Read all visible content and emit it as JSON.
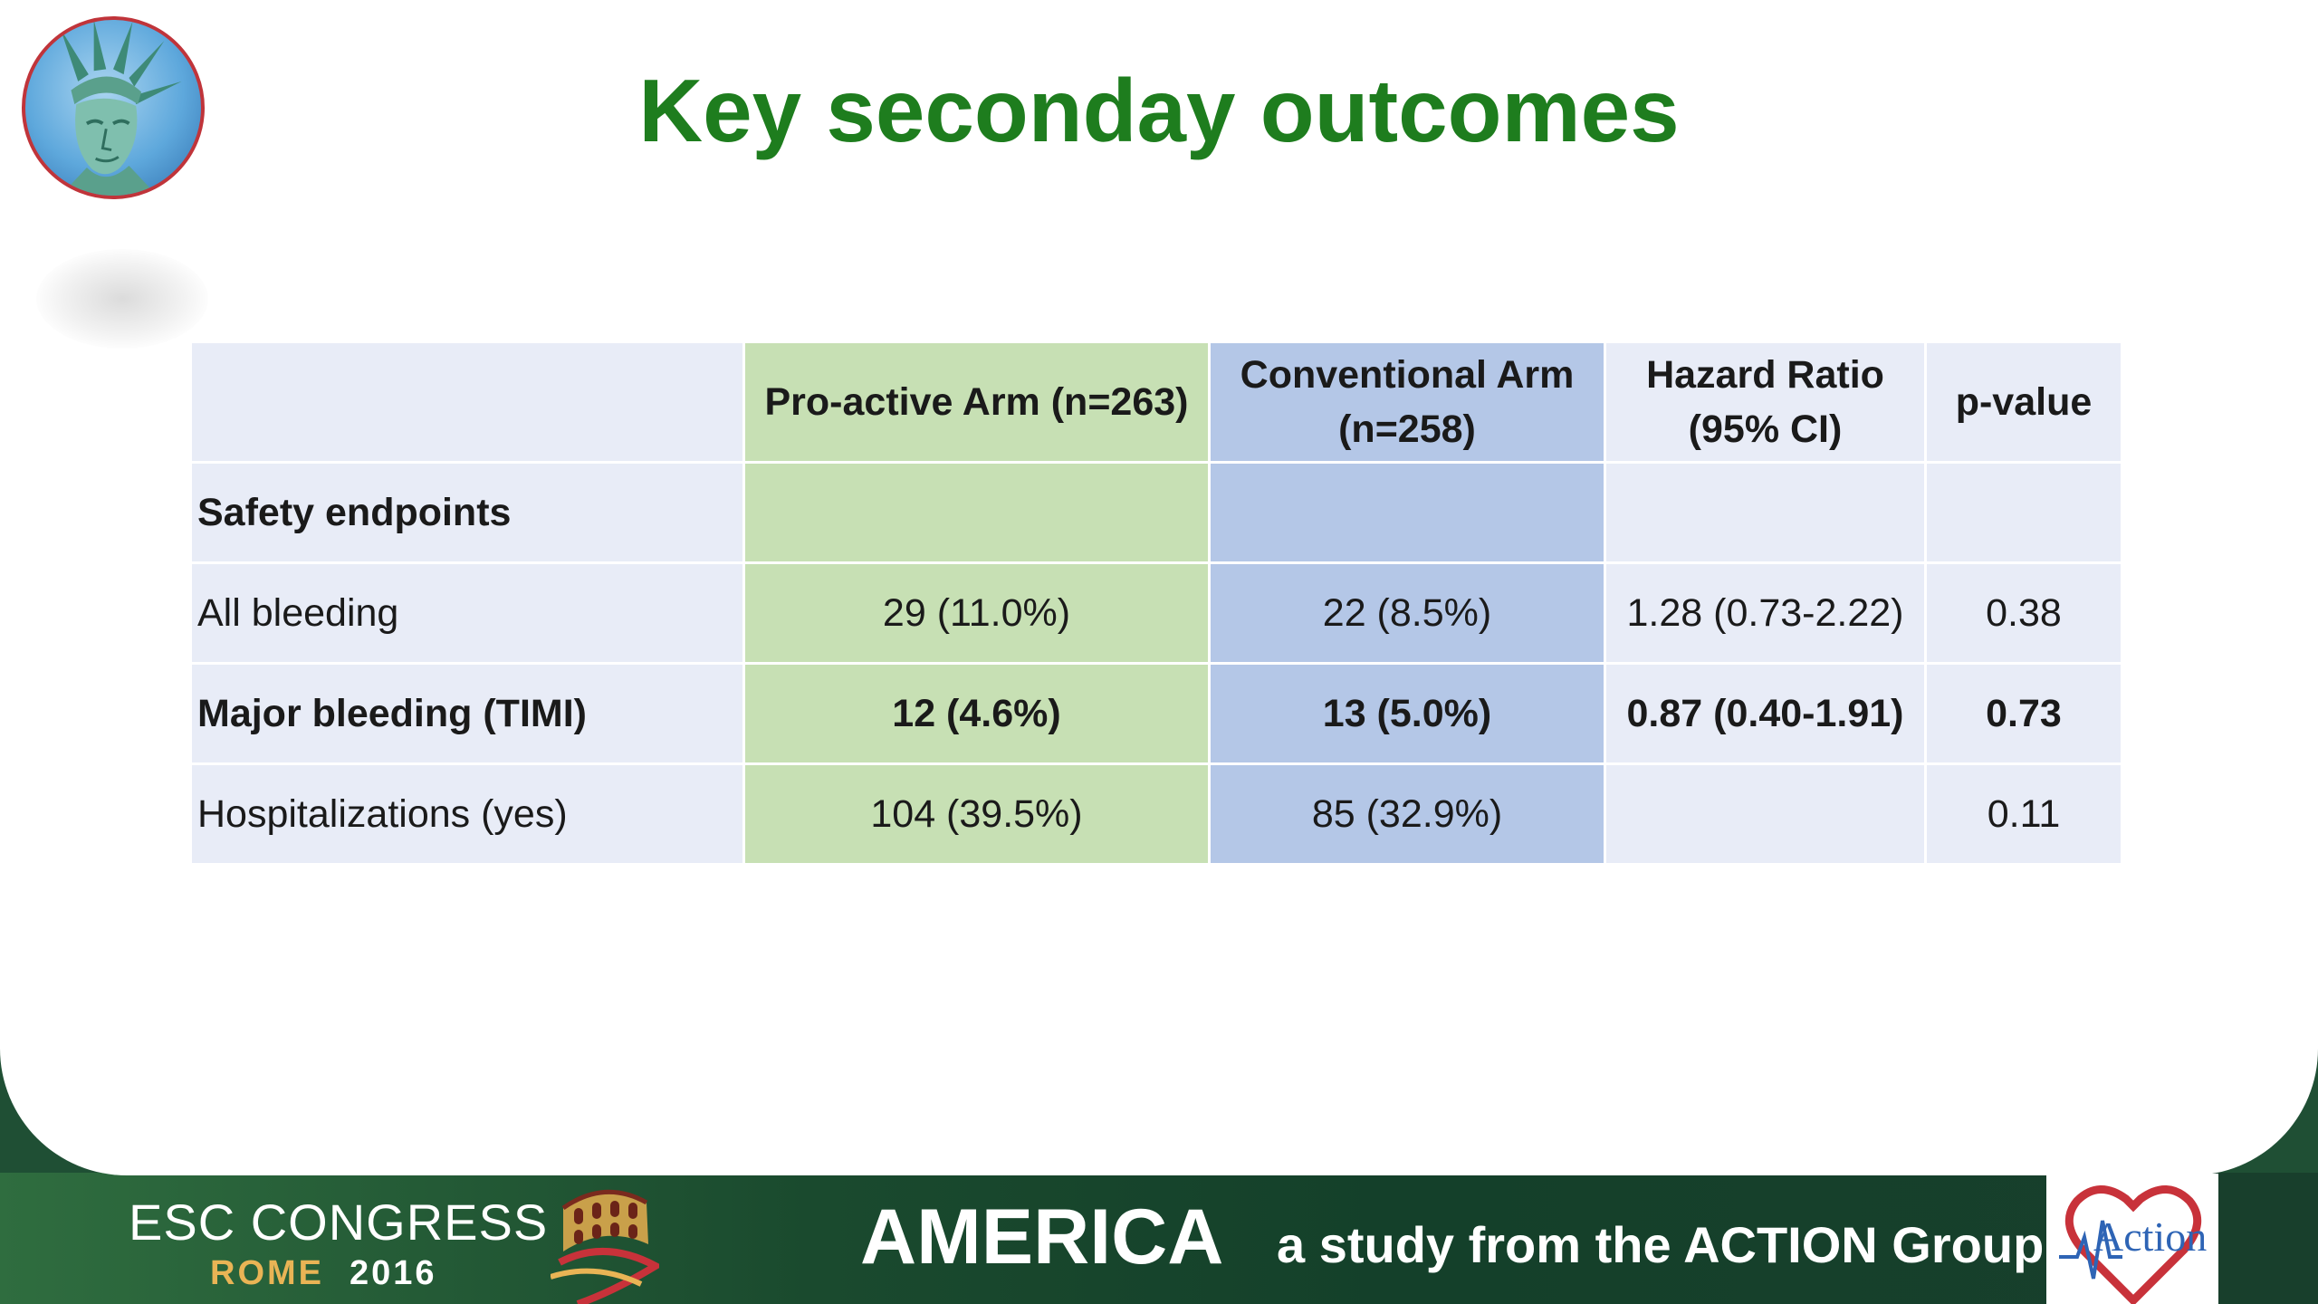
{
  "slide": {
    "title": "Key seconday outcomes"
  },
  "table": {
    "headers": {
      "label": "",
      "pro_active": "Pro-active Arm (n=263)",
      "conventional_line1": "Conventional Arm",
      "conventional_line2": "(n=258)",
      "hazard_line1": "Hazard Ratio",
      "hazard_line2": "(95% CI)",
      "p_value": "p-value"
    },
    "rows": [
      {
        "label": "Safety endpoints",
        "pro_active": "",
        "conventional": "",
        "hazard_ratio": "",
        "p_value": ""
      },
      {
        "label": "All bleeding",
        "pro_active": "29 (11.0%)",
        "conventional": "22 (8.5%)",
        "hazard_ratio": "1.28 (0.73-2.22)",
        "p_value": "0.38"
      },
      {
        "label": "Major bleeding (TIMI)",
        "pro_active": "12 (4.6%)",
        "conventional": "13 (5.0%)",
        "hazard_ratio": "0.87 (0.40-1.91)",
        "p_value": "0.73"
      },
      {
        "label": "Hospitalizations (yes)",
        "pro_active": "104 (39.5%)",
        "conventional": "85 (32.9%)",
        "hazard_ratio": "",
        "p_value": "0.11"
      }
    ]
  },
  "footer": {
    "congress": "ESC CONGRESS",
    "city": "ROME",
    "year": "2016",
    "study_name": "AMERICA",
    "tagline": "a study from the ACTION Group",
    "group_logo_text": "Action"
  },
  "colors": {
    "title_green": "#1e7d1e",
    "pro_active_fill": "#c7e0b4",
    "conventional_fill": "#b4c7e7",
    "neutral_fill": "#e8ecf7",
    "footer_green": "#1f4f34",
    "rome_gold": "#e9b455",
    "action_blue": "#2e64b5",
    "logo_heart_red": "#c8323a"
  },
  "icons": {
    "top_left_logo": "statue-of-liberty-icon",
    "footer_logo": "colosseum-icon",
    "action_logo": "heart-ecg-icon"
  }
}
